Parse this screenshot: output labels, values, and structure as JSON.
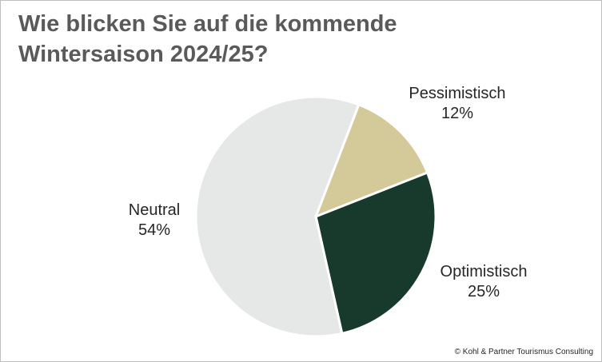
{
  "title_lines": [
    "Wie blicken Sie auf die kommende",
    "Wintersaison 2024/25?"
  ],
  "copyright": "© Kohl & Partner Tourismus Consulting",
  "chart_data": {
    "type": "pie",
    "title": "Wie blicken Sie auf die kommende Wintersaison 2024/25?",
    "slices": [
      {
        "name": "Pessimistisch",
        "value": 12,
        "label": "12%",
        "color": "#d4c998"
      },
      {
        "name": "Optimistisch",
        "value": 25,
        "label": "25%",
        "color": "#173a2c"
      },
      {
        "name": "Neutral",
        "value": 54,
        "label": "54%",
        "color": "#e6e8e7"
      }
    ],
    "legend": "none"
  }
}
